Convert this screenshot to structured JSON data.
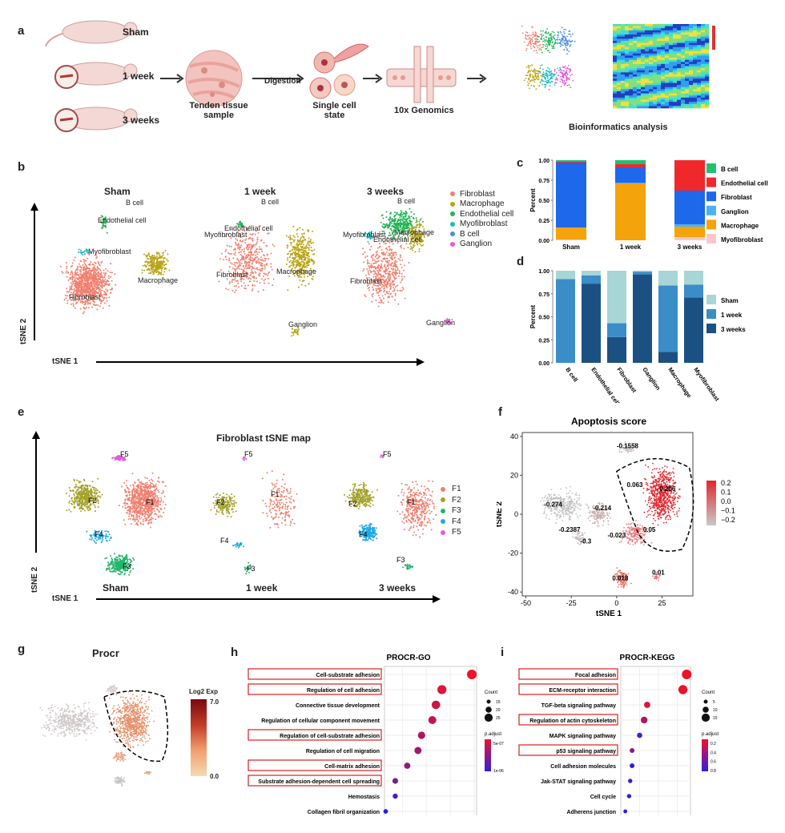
{
  "panels": {
    "a": "a",
    "b": "b",
    "c": "c",
    "d": "d",
    "e": "e",
    "f": "f",
    "g": "g",
    "h": "h",
    "i": "i"
  },
  "panel_a": {
    "groups": [
      "Sham",
      "1 week",
      "3 weeks"
    ],
    "steps": [
      "Tenden tissue sample",
      "Single cell state",
      "10x Genomics"
    ],
    "arrow_label": "Digestion",
    "caption": "Bioinformatics analysis"
  },
  "panel_b": {
    "titles": [
      "Sham",
      "1 week",
      "3 weeks"
    ],
    "xaxis": "tSNE 1",
    "yaxis": "tSNE 2",
    "sham_labels": [
      "B cell",
      "Endothelial cell",
      "Myofibroblast",
      "Macrophage",
      "Fibroblast"
    ],
    "week1_labels": [
      "B cell",
      "Endothelial cell",
      "Myofibroblast",
      "Fibroblast",
      "Macrophage",
      "Ganglion"
    ],
    "week3_labels": [
      "B cell",
      "Macrophage",
      "Myofibroblast",
      "Endothelial cell",
      "Fibroblast",
      "Ganglion"
    ],
    "legend": [
      {
        "label": "Fibroblast",
        "color": "#f08070"
      },
      {
        "label": "Macrophage",
        "color": "#b9a417"
      },
      {
        "label": "Endothelial cell",
        "color": "#22b455"
      },
      {
        "label": "Myofibroblast",
        "color": "#18b9c4"
      },
      {
        "label": "B cell",
        "color": "#4d8fe0"
      },
      {
        "label": "Ganglion",
        "color": "#e45ad9"
      }
    ]
  },
  "chart_data": [
    {
      "panel": "c",
      "type": "bar",
      "stacked": true,
      "categories": [
        "Sham",
        "1 week",
        "3 weeks"
      ],
      "ylabel": "Percent",
      "yticks": [
        "0.00",
        "0.25",
        "0.50",
        "0.75",
        "1.00"
      ],
      "ylim": [
        0,
        1
      ],
      "series": [
        {
          "name": "Myofibroblast",
          "color": "#f8c7cc",
          "values": [
            0.01,
            0.0,
            0.04
          ]
        },
        {
          "name": "Macrophage",
          "color": "#f5a30a",
          "values": [
            0.15,
            0.71,
            0.13
          ]
        },
        {
          "name": "Ganglion",
          "color": "#4fb0ef",
          "values": [
            0.0,
            0.01,
            0.03
          ]
        },
        {
          "name": "Fibroblast",
          "color": "#1e68ec",
          "values": [
            0.81,
            0.19,
            0.42
          ]
        },
        {
          "name": "Endothelial cell",
          "color": "#f0282c",
          "values": [
            0.01,
            0.04,
            0.38
          ]
        },
        {
          "name": "B cell",
          "color": "#20c070",
          "values": [
            0.02,
            0.05,
            0.0
          ]
        }
      ]
    },
    {
      "panel": "d",
      "type": "bar",
      "stacked": true,
      "categories": [
        "B cell",
        "Endothelial cell",
        "Fibroblast",
        "Ganglion",
        "Macrophage",
        "Myofibroblast"
      ],
      "ylabel": "Percent",
      "yticks": [
        "0.00",
        "0.25",
        "0.50",
        "0.75",
        "1.00"
      ],
      "ylim": [
        0,
        1
      ],
      "series": [
        {
          "name": "3 weeks",
          "color": "#1a5182",
          "values": [
            0.0,
            0.86,
            0.28,
            0.96,
            0.12,
            0.71
          ]
        },
        {
          "name": "1 week",
          "color": "#3b8dc8",
          "values": [
            0.91,
            0.09,
            0.15,
            0.03,
            0.72,
            0.14
          ]
        },
        {
          "name": "Sham",
          "color": "#a8d5d6",
          "values": [
            0.09,
            0.05,
            0.57,
            0.01,
            0.16,
            0.15
          ]
        }
      ]
    },
    {
      "panel": "f",
      "type": "scatter",
      "title": "Apoptosis score",
      "xlabel": "tSNE 1",
      "ylabel": "tSNE 2",
      "xlim": [
        -52,
        42
      ],
      "ylim": [
        -42,
        42
      ],
      "xticks": [
        -50,
        -25,
        0,
        25
      ],
      "yticks": [
        -40,
        -20,
        0,
        20,
        40
      ],
      "cluster_scores": [
        {
          "label": "-0.1558",
          "x": 6,
          "y": 34
        },
        {
          "label": "0.063",
          "x": 10,
          "y": 14
        },
        {
          "label": "0.206",
          "x": 28,
          "y": 12
        },
        {
          "label": "-0.274",
          "x": -35,
          "y": 4
        },
        {
          "label": "-0.214",
          "x": -8,
          "y": 2
        },
        {
          "label": "-0.2387",
          "x": -26,
          "y": -9
        },
        {
          "label": "-0.023",
          "x": 0,
          "y": -12
        },
        {
          "label": "0.05",
          "x": 18,
          "y": -9
        },
        {
          "label": "-0.3",
          "x": -17,
          "y": -15
        },
        {
          "label": "0.018",
          "x": 2,
          "y": -34
        },
        {
          "label": "0.01",
          "x": 23,
          "y": -31
        }
      ],
      "colorbar": {
        "ticks": [
          "0.2",
          "0.1",
          "0.0",
          "−0.1",
          "−0.2"
        ],
        "low": "#c8c8c8",
        "high": "#e0282c"
      }
    },
    {
      "panel": "h",
      "type": "scatter",
      "title": "PROCR-GO",
      "categories": [
        "Cell-substrate adhesion",
        "Regulation of cell adhesion",
        "Connective tissue development",
        "Regulation of cellular component movement",
        "Regulation of cell-substrate adhesion",
        "Regulation of cell migration",
        "Cell-matrix adhesion",
        "Substrate adhesion-dependent cell spreading",
        "Hemostasis",
        "Collagen fibril organization"
      ],
      "x": [
        0.118,
        0.093,
        0.088,
        0.085,
        0.076,
        0.073,
        0.064,
        0.054,
        0.054,
        0.046
      ],
      "count": [
        26,
        24,
        22,
        20,
        18,
        17,
        14,
        12,
        10,
        8
      ],
      "p_adjust": [
        2e-08,
        3e-08,
        4e-08,
        5e-08,
        6e-08,
        7e-08,
        8e-08,
        1e-07,
        1.3e-07,
        1.6e-07
      ],
      "highlighted": [
        true,
        true,
        false,
        false,
        true,
        false,
        true,
        true,
        false,
        false
      ],
      "xticks": [
        "0.06",
        "0.08",
        "0.10",
        "0.12"
      ],
      "xlim": [
        0.045,
        0.122
      ],
      "legend_count_title": "Count",
      "legend_count": [
        "15",
        "20",
        "25"
      ],
      "legend_p_title": "p.adjust",
      "legend_p": [
        "5e-07",
        "1e-06"
      ]
    },
    {
      "panel": "i",
      "type": "scatter",
      "title": "PROCR-KEGG",
      "categories": [
        "Focal adhesion",
        "ECM-receptor interaction",
        "TGF-beta signaling pathway",
        "Regulation of actin cytoskeleton",
        "MAPK signaling pathway",
        "p53 signaling pathway",
        "Cell adhesion molecules",
        "Jak-STAT signaling pathway",
        "Cell cycle",
        "Adherens junction"
      ],
      "x": [
        0.175,
        0.165,
        0.07,
        0.062,
        0.05,
        0.03,
        0.03,
        0.025,
        0.022,
        0.012
      ],
      "count": [
        15,
        14,
        8,
        9,
        6,
        5,
        5,
        4,
        4,
        3
      ],
      "p_adjust": [
        0.02,
        0.03,
        0.1,
        0.25,
        0.6,
        0.35,
        0.7,
        0.72,
        0.74,
        0.76
      ],
      "highlighted": [
        true,
        true,
        false,
        true,
        false,
        true,
        false,
        false,
        false,
        false
      ],
      "xticks": [
        "0.05",
        "0.10",
        "0.15"
      ],
      "xlim": [
        0.0,
        0.185
      ],
      "legend_count_title": "Count",
      "legend_count": [
        "5",
        "10",
        "15"
      ],
      "legend_p_title": "p.adjust",
      "legend_p": [
        "0.2",
        "0.4",
        "0.6",
        "0.8"
      ]
    }
  ],
  "panel_e": {
    "title": "Fibroblast tSNE map",
    "xaxis": "tSNE 1",
    "yaxis": "tSNE 2",
    "groups": [
      "Sham",
      "1 week",
      "3 weeks"
    ],
    "legend": [
      {
        "label": "F1",
        "color": "#f08070"
      },
      {
        "label": "F2",
        "color": "#a3a12a"
      },
      {
        "label": "F3",
        "color": "#22b66c"
      },
      {
        "label": "F4",
        "color": "#1fa9e4"
      },
      {
        "label": "F5",
        "color": "#e45ad9"
      }
    ]
  },
  "panel_g": {
    "title": "Procr",
    "legend_title": "Log2 Exp",
    "legend_max": "7.0",
    "legend_min": "0.0"
  }
}
